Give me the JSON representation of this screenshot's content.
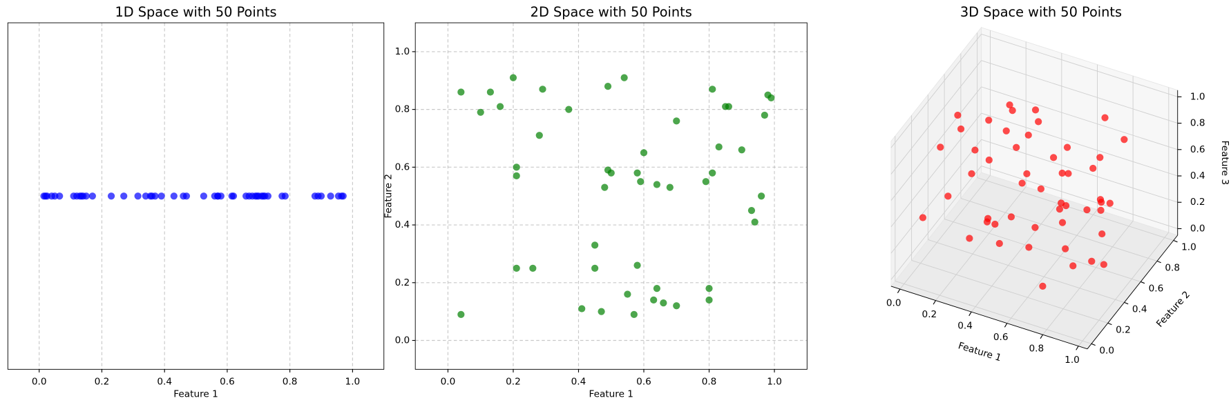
{
  "chart_data": [
    {
      "type": "strip",
      "title": "1D Space with 50 Points",
      "xlabel": "Feature 1",
      "color": "#0000ff",
      "x": [
        0.015,
        0.02,
        0.025,
        0.04,
        0.05,
        0.065,
        0.11,
        0.12,
        0.13,
        0.135,
        0.14,
        0.15,
        0.17,
        0.23,
        0.27,
        0.315,
        0.34,
        0.355,
        0.36,
        0.37,
        0.39,
        0.43,
        0.46,
        0.47,
        0.525,
        0.56,
        0.57,
        0.57,
        0.58,
        0.615,
        0.62,
        0.66,
        0.67,
        0.68,
        0.69,
        0.695,
        0.7,
        0.71,
        0.715,
        0.72,
        0.73,
        0.775,
        0.785,
        0.88,
        0.89,
        0.9,
        0.93,
        0.955,
        0.965,
        0.97
      ],
      "xlim": [
        -0.1,
        1.1
      ],
      "xticks": [
        {
          "value": 0,
          "label": "0.0"
        },
        {
          "value": 0.2,
          "label": "0.2"
        },
        {
          "value": 0.4,
          "label": "0.4"
        },
        {
          "value": 0.6,
          "label": "0.6"
        },
        {
          "value": 0.8,
          "label": "0.8"
        },
        {
          "value": 1,
          "label": "1.0"
        }
      ],
      "grid": true
    },
    {
      "type": "scatter",
      "title": "2D Space with 50 Points",
      "xlabel": "Feature 1",
      "ylabel": "Feature 2",
      "color": "#008000",
      "x": [
        0.04,
        0.13,
        0.16,
        0.1,
        0.2,
        0.29,
        0.21,
        0.21,
        0.28,
        0.37,
        0.49,
        0.54,
        0.6,
        0.7,
        0.49,
        0.5,
        0.48,
        0.58,
        0.59,
        0.64,
        0.68,
        0.81,
        0.85,
        0.86,
        0.83,
        0.9,
        0.81,
        0.79,
        0.97,
        0.98,
        0.99,
        0.96,
        0.93,
        0.94,
        0.21,
        0.26,
        0.45,
        0.45,
        0.58,
        0.55,
        0.04,
        0.41,
        0.47,
        0.57,
        0.64,
        0.63,
        0.66,
        0.7,
        0.8,
        0.8
      ],
      "y": [
        0.86,
        0.86,
        0.81,
        0.79,
        0.91,
        0.87,
        0.6,
        0.57,
        0.71,
        0.8,
        0.88,
        0.91,
        0.65,
        0.76,
        0.59,
        0.58,
        0.53,
        0.58,
        0.55,
        0.54,
        0.53,
        0.87,
        0.81,
        0.81,
        0.67,
        0.66,
        0.58,
        0.55,
        0.78,
        0.85,
        0.84,
        0.5,
        0.45,
        0.41,
        0.25,
        0.25,
        0.33,
        0.25,
        0.26,
        0.16,
        0.09,
        0.11,
        0.1,
        0.09,
        0.18,
        0.14,
        0.13,
        0.12,
        0.18,
        0.14
      ],
      "xlim": [
        -0.1,
        1.1
      ],
      "ylim": [
        -0.1,
        1.1
      ],
      "xticks": [
        {
          "value": 0,
          "label": "0.0"
        },
        {
          "value": 0.2,
          "label": "0.2"
        },
        {
          "value": 0.4,
          "label": "0.4"
        },
        {
          "value": 0.6,
          "label": "0.6"
        },
        {
          "value": 0.8,
          "label": "0.8"
        },
        {
          "value": 1,
          "label": "1.0"
        }
      ],
      "yticks": [
        {
          "value": 0,
          "label": "0.0"
        },
        {
          "value": 0.2,
          "label": "0.2"
        },
        {
          "value": 0.4,
          "label": "0.4"
        },
        {
          "value": 0.6,
          "label": "0.6"
        },
        {
          "value": 0.8,
          "label": "0.8"
        },
        {
          "value": 1,
          "label": "1.0"
        }
      ],
      "grid": true
    },
    {
      "type": "scatter3d",
      "title": "3D Space with 50 Points",
      "xlabel": "Feature 1",
      "ylabel": "Feature 2",
      "zlabel": "Feature 3",
      "color": "#ff0000",
      "x": [
        0.12,
        0.85,
        0.43,
        0.67,
        0.21,
        0.93,
        0.05,
        0.56,
        0.38,
        0.74,
        0.29,
        0.61,
        0.88,
        0.15,
        0.47,
        0.79,
        0.33,
        0.02,
        0.69,
        0.52,
        0.96,
        0.24,
        0.41,
        0.83,
        0.09,
        0.58,
        0.71,
        0.36,
        0.18,
        0.64,
        0.99,
        0.27,
        0.49,
        0.81,
        0.07,
        0.55,
        0.44,
        0.91,
        0.31,
        0.76,
        0.13,
        0.62,
        0.86,
        0.39,
        0.72,
        0.03,
        0.53,
        0.26,
        0.95,
        0.68
      ],
      "y": [
        0.77,
        0.21,
        0.58,
        0.93,
        0.34,
        0.66,
        0.12,
        0.45,
        0.81,
        0.08,
        0.69,
        0.27,
        0.52,
        0.96,
        0.14,
        0.73,
        0.39,
        0.61,
        0.02,
        0.87,
        0.31,
        0.49,
        0.71,
        0.16,
        0.84,
        0.56,
        0.37,
        0.04,
        0.63,
        0.91,
        0.24,
        0.78,
        0.43,
        0.65,
        0.29,
        0.11,
        0.97,
        0.53,
        0.19,
        0.75,
        0.41,
        0.88,
        0.06,
        0.59,
        0.33,
        0.47,
        0.82,
        0.68,
        0.22,
        0.51
      ],
      "z": [
        0.64,
        0.29,
        0.81,
        0.47,
        0.12,
        0.93,
        0.38,
        0.56,
        0.71,
        0.19,
        0.85,
        0.43,
        0.07,
        0.62,
        0.35,
        0.98,
        0.24,
        0.76,
        0.51,
        0.33,
        0.68,
        0.14,
        0.89,
        0.45,
        0.27,
        0.72,
        0.58,
        0.91,
        0.03,
        0.39,
        0.83,
        0.49,
        0.66,
        0.17,
        0.79,
        0.61,
        0.22,
        0.54,
        0.95,
        0.31,
        0.86,
        0.09,
        0.74,
        0.42,
        0.57,
        0.26,
        0.13,
        0.69,
        0.36,
        0.88
      ],
      "xlim": [
        -0.05,
        1.05
      ],
      "ylim": [
        -0.05,
        1.05
      ],
      "zlim": [
        -0.05,
        1.05
      ],
      "xticks": [
        {
          "value": 0,
          "label": "0.0"
        },
        {
          "value": 0.2,
          "label": "0.2"
        },
        {
          "value": 0.4,
          "label": "0.4"
        },
        {
          "value": 0.6,
          "label": "0.6"
        },
        {
          "value": 0.8,
          "label": "0.8"
        },
        {
          "value": 1,
          "label": "1.0"
        }
      ],
      "yticks": [
        {
          "value": 0,
          "label": "0.0"
        },
        {
          "value": 0.2,
          "label": "0.2"
        },
        {
          "value": 0.4,
          "label": "0.4"
        },
        {
          "value": 0.6,
          "label": "0.6"
        },
        {
          "value": 0.8,
          "label": "0.8"
        },
        {
          "value": 1,
          "label": "1.0"
        }
      ],
      "zticks": [
        {
          "value": 0,
          "label": "0.0"
        },
        {
          "value": 0.2,
          "label": "0.2"
        },
        {
          "value": 0.4,
          "label": "0.4"
        },
        {
          "value": 0.6,
          "label": "0.6"
        },
        {
          "value": 0.8,
          "label": "0.8"
        },
        {
          "value": 1,
          "label": "1.0"
        }
      ],
      "grid": true
    }
  ]
}
